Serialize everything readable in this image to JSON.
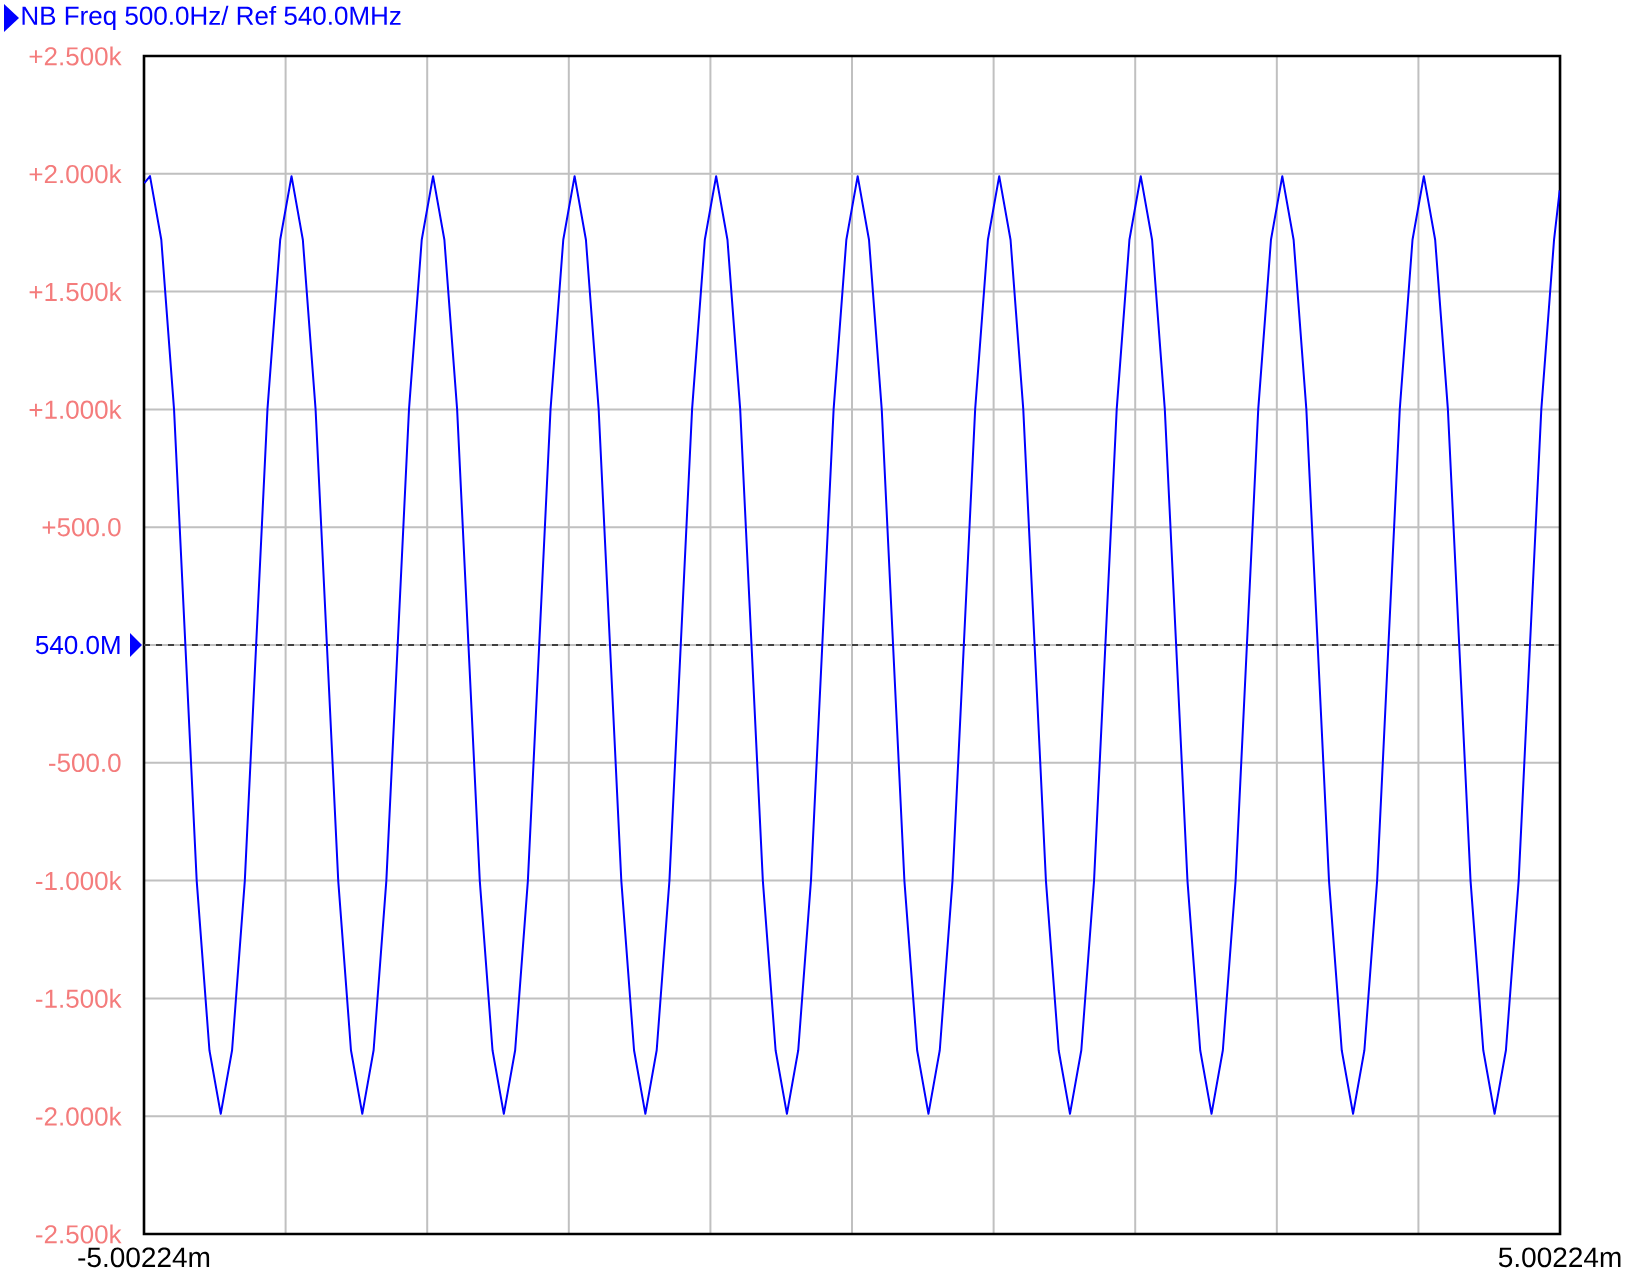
{
  "chart_data": {
    "type": "line",
    "title": "NB Freq 500.0Hz/ Ref 540.0MHz",
    "x": [
      -5,
      -4.96,
      -4.88,
      -4.79,
      -4.71,
      -4.63,
      -4.54,
      -4.46,
      -4.38,
      -4.29,
      -4.21,
      -4.13,
      -4.04,
      -3.96,
      -3.88,
      -3.79,
      -3.71,
      -3.63,
      -3.54,
      -3.46,
      -3.38,
      -3.29,
      -3.21,
      -3.13,
      -3.04,
      -2.96,
      -2.88,
      -2.79,
      -2.71,
      -2.63,
      -2.54,
      -2.46,
      -2.38,
      -2.29,
      -2.21,
      -2.13,
      -2.04,
      -1.96,
      -1.88,
      -1.79,
      -1.71,
      -1.63,
      -1.54,
      -1.46,
      -1.38,
      -1.29,
      -1.21,
      -1.13,
      -1.04,
      -0.96,
      -0.88,
      -0.79,
      -0.71,
      -0.63,
      -0.54,
      -0.46,
      -0.38,
      -0.29,
      -0.21,
      -0.13,
      -0.04,
      0.04,
      0.12,
      0.21,
      0.29,
      0.37,
      0.46,
      0.54,
      0.62,
      0.71,
      0.79,
      0.87,
      0.96,
      1.04,
      1.12,
      1.21,
      1.29,
      1.37,
      1.46,
      1.54,
      1.62,
      1.71,
      1.79,
      1.87,
      1.96,
      2.04,
      2.12,
      2.21,
      2.29,
      2.37,
      2.46,
      2.54,
      2.62,
      2.71,
      2.79,
      2.87,
      2.96,
      3.04,
      3.12,
      3.21,
      3.29,
      3.37,
      3.46,
      3.54,
      3.62,
      3.71,
      3.79,
      3.87,
      3.96,
      4.04,
      4.12,
      4.21,
      4.29,
      4.37,
      4.46,
      4.54,
      4.62,
      4.71,
      4.79,
      4.87,
      4.96,
      5
    ],
    "values": [
      1960,
      1990,
      1720,
      1000,
      0,
      -1000,
      -1720,
      -1990,
      -1720,
      -1000,
      0,
      1000,
      1720,
      1990,
      1720,
      1000,
      0,
      -1000,
      -1720,
      -1990,
      -1720,
      -1000,
      0,
      1000,
      1720,
      1990,
      1720,
      1000,
      0,
      -1000,
      -1720,
      -1990,
      -1720,
      -1000,
      0,
      1000,
      1720,
      1990,
      1720,
      1000,
      0,
      -1000,
      -1720,
      -1990,
      -1720,
      -1000,
      0,
      1000,
      1720,
      1990,
      1720,
      1000,
      0,
      -1000,
      -1720,
      -1990,
      -1720,
      -1000,
      0,
      1000,
      1720,
      1990,
      1720,
      1000,
      0,
      -1000,
      -1720,
      -1990,
      -1720,
      -1000,
      0,
      1000,
      1720,
      1990,
      1720,
      1000,
      0,
      -1000,
      -1720,
      -1990,
      -1720,
      -1000,
      0,
      1000,
      1720,
      1990,
      1720,
      1000,
      0,
      -1000,
      -1720,
      -1990,
      -1720,
      -1000,
      0,
      1000,
      1720,
      1990,
      1720,
      1000,
      0,
      -1000,
      -1720,
      -1990,
      -1720,
      -1000,
      0,
      1000,
      1720,
      1990,
      1720,
      1000,
      0,
      -1000,
      -1720,
      -1990,
      -1720,
      -1000,
      0,
      1000,
      1720,
      1930
    ],
    "color": "#0000ff",
    "xlim": [
      -5.00224,
      5.00224
    ],
    "xticks": [
      {
        "value": -5.00224,
        "label": "-5.00224m"
      },
      {
        "value": -4.001792,
        "label": null
      },
      {
        "value": -3.001344,
        "label": null
      },
      {
        "value": -2.000896,
        "label": null
      },
      {
        "value": -1.000448,
        "label": null
      },
      {
        "value": 0,
        "label": null
      },
      {
        "value": 1.000448,
        "label": null
      },
      {
        "value": 2.000896,
        "label": null
      },
      {
        "value": 3.001344,
        "label": null
      },
      {
        "value": 4.001792,
        "label": null
      },
      {
        "value": 5.00224,
        "label": "5.00224m"
      }
    ],
    "ylim": [
      -2500,
      2500
    ],
    "yticks": [
      {
        "value": -2500,
        "label": "-2.500k"
      },
      {
        "value": -2000,
        "label": "-2.000k"
      },
      {
        "value": -1500,
        "label": "-1.500k"
      },
      {
        "value": -1000,
        "label": "-1.000k"
      },
      {
        "value": -500,
        "label": "-500.0"
      },
      {
        "value": 0,
        "label": null
      },
      {
        "value": 500,
        "label": "+500.0"
      },
      {
        "value": 1000,
        "label": "+1.000k"
      },
      {
        "value": 1500,
        "label": "+1.500k"
      },
      {
        "value": 2000,
        "label": "+2.000k"
      },
      {
        "value": 2500,
        "label": "+2.500k"
      }
    ],
    "grid": true,
    "ref_lines": [
      {
        "axis": "y",
        "value": 0,
        "label": "540.0M",
        "color": "#404040",
        "line_style": "dashed"
      }
    ]
  }
}
